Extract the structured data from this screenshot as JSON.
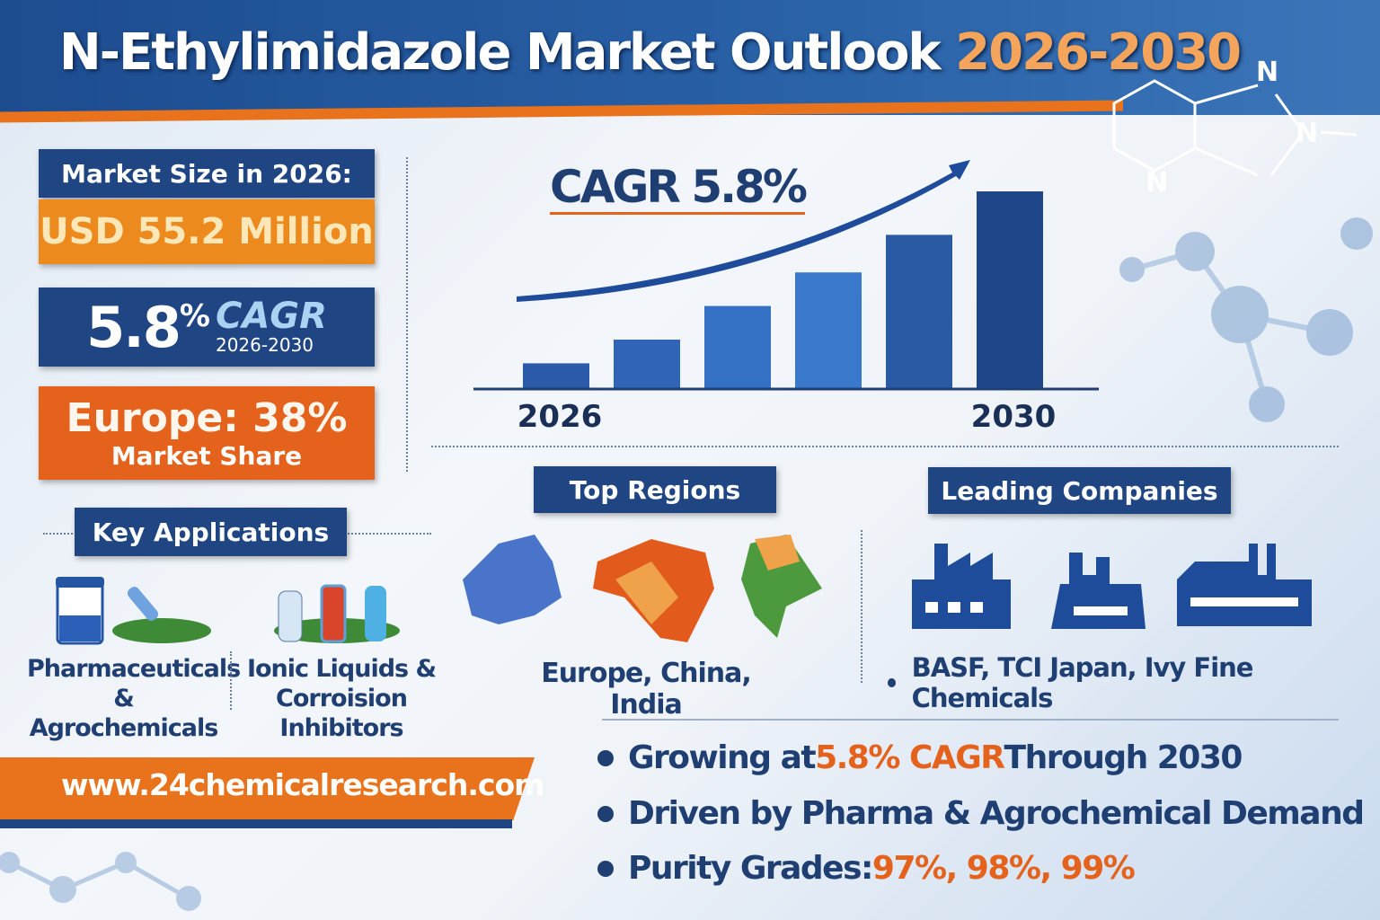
{
  "title": {
    "main": "N-Ethylimidazole Market Outlook",
    "years": "2026-2030"
  },
  "stats": {
    "market_size_label": "Market Size in 2026:",
    "market_size_value": "USD 55.2 Million",
    "cagr_value": "5.8",
    "cagr_pct": "%",
    "cagr_label": "CAGR",
    "cagr_years": "2026-2030",
    "europe_label": "Europe: 38%",
    "europe_sub": "Market Share"
  },
  "chart_data": {
    "type": "bar",
    "title": "CAGR 5.8%",
    "categories": [
      "2026",
      "",
      "",
      "",
      "",
      "2030"
    ],
    "values": [
      13,
      25,
      42,
      59,
      78,
      100
    ],
    "xlabel": "",
    "ylabel": "",
    "ylim": [
      0,
      100
    ],
    "grid": false,
    "note": "relative heights, no axis values shown"
  },
  "applications": {
    "heading": "Key Applications",
    "items": [
      {
        "line1": "Pharmaceuticals",
        "line2": "& Agrochemicals"
      },
      {
        "line1": "Ionic Liquids &",
        "line2": "Corroision Inhibitors"
      }
    ]
  },
  "regions": {
    "heading": "Top Regions",
    "text": "Europe, China, India"
  },
  "companies": {
    "heading": "Leading Companies",
    "text": "BASF, TCI Japan, Ivy Fine Chemicals"
  },
  "website": "www.24chemicalresearch.com",
  "highlights": [
    {
      "pre": "Growing at ",
      "hl": "5.8% CAGR",
      "post": " Through 2030"
    },
    {
      "pre": "Driven by Pharma & Agrochemical Demand",
      "hl": "",
      "post": ""
    },
    {
      "pre": "Purity Grades: ",
      "hl": "97%, 98%, 99%",
      "post": ""
    }
  ],
  "colors": {
    "navy": "#1f4683",
    "orange": "#ec8a1e",
    "red_orange": "#e4621c"
  }
}
